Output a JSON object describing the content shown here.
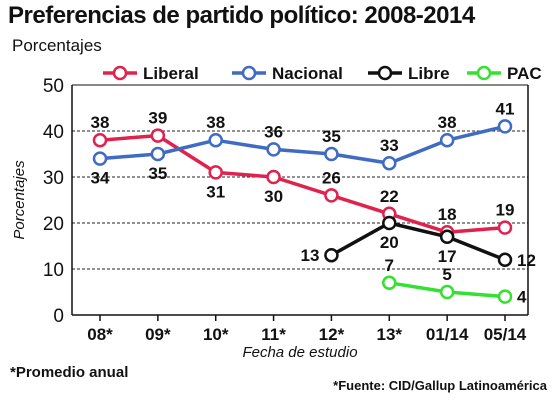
{
  "title": "Preferencias de partido político: 2008-2014",
  "subtitle": "Porcentajes",
  "footnote_left": "*Promedio anual",
  "footnote_right": "*Fuente: CID/Gallup Latinoamérica",
  "chart_data": {
    "type": "line",
    "title": "Preferencias de partido político: 2008-2014",
    "subtitle": "Porcentajes",
    "xlabel": "Fecha de estudio",
    "ylabel": "Porcentajes",
    "ylim": [
      0,
      50
    ],
    "yticks": [
      0,
      10,
      20,
      30,
      40,
      50
    ],
    "categories": [
      "08*",
      "09*",
      "10*",
      "11*",
      "12*",
      "13*",
      "01/14",
      "05/14"
    ],
    "grid": true,
    "legend_position": "top",
    "series": [
      {
        "name": "Liberal",
        "color": "#e0224e",
        "values": [
          38,
          39,
          31,
          30,
          26,
          22,
          18,
          19
        ]
      },
      {
        "name": "Nacional",
        "color": "#3f6cc2",
        "values": [
          34,
          35,
          38,
          36,
          35,
          33,
          38,
          41
        ]
      },
      {
        "name": "Libre",
        "color": "#111111",
        "values": [
          null,
          null,
          null,
          null,
          13,
          20,
          17,
          12
        ]
      },
      {
        "name": "PAC",
        "color": "#34e030",
        "values": [
          null,
          null,
          null,
          null,
          null,
          7,
          5,
          4
        ]
      }
    ]
  }
}
